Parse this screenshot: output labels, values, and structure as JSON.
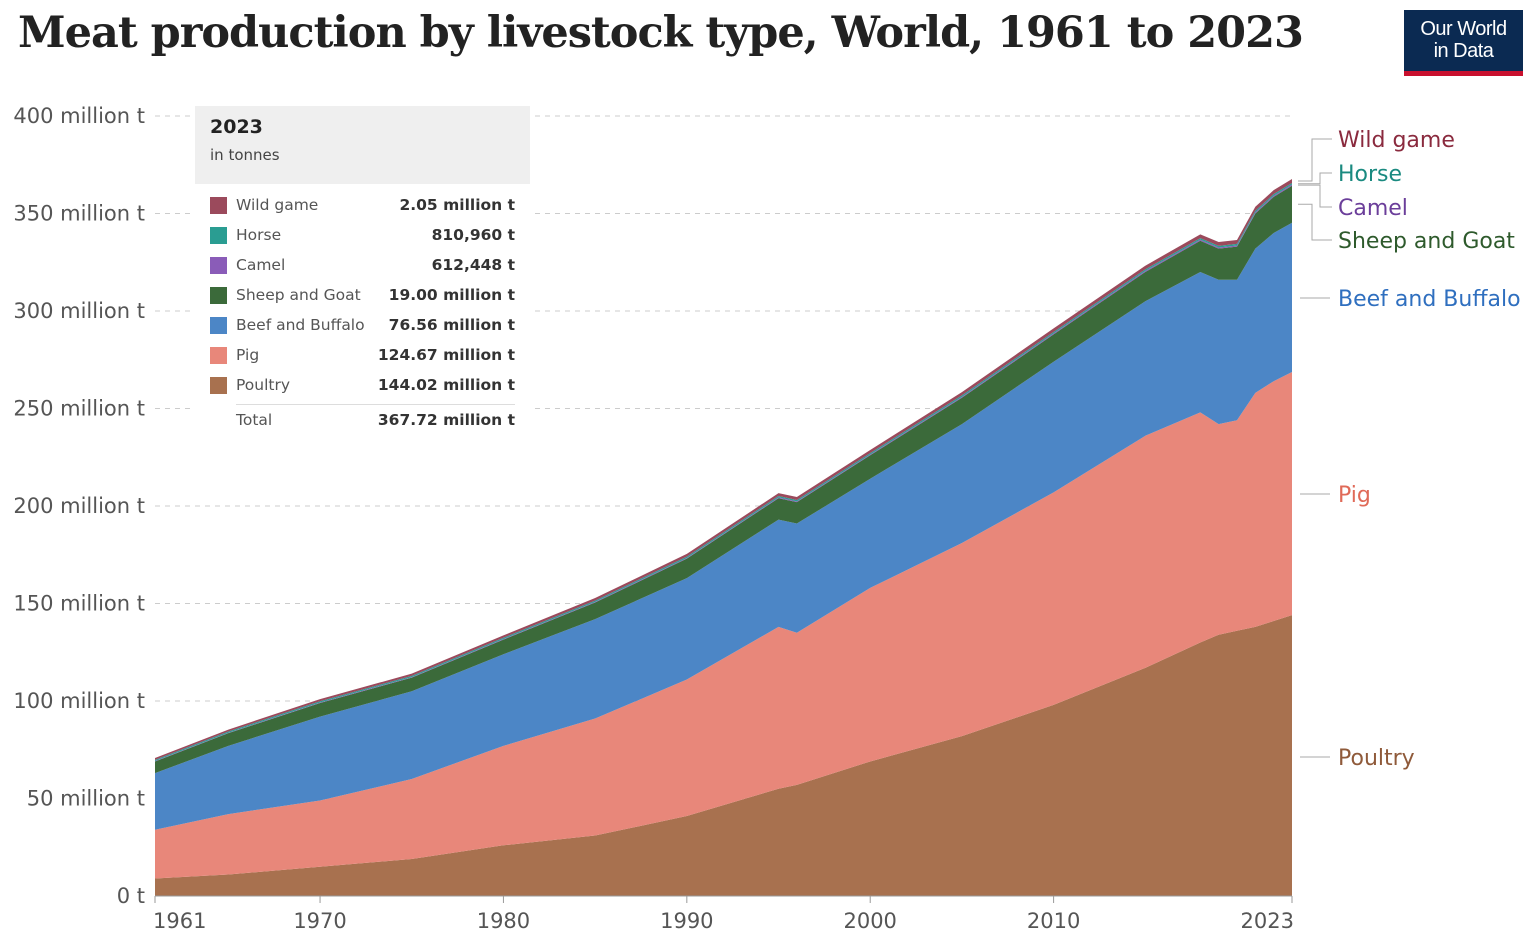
{
  "header": {
    "title": "Meat production by livestock type, World, 1961 to 2023",
    "logo_line1": "Our World",
    "logo_line2": "in Data"
  },
  "tooltip": {
    "year": "2023",
    "unit": "in tonnes",
    "rows": [
      {
        "name": "Wild game",
        "value": "2.05 million t"
      },
      {
        "name": "Horse",
        "value": "810,960 t"
      },
      {
        "name": "Camel",
        "value": "612,448 t"
      },
      {
        "name": "Sheep and Goat",
        "value": "19.00 million t"
      },
      {
        "name": "Beef and Buffalo",
        "value": "76.56 million t"
      },
      {
        "name": "Pig",
        "value": "124.67 million t"
      },
      {
        "name": "Poultry",
        "value": "144.02 million t"
      }
    ],
    "total_label": "Total",
    "total_value": "367.72 million t"
  },
  "chart_data": {
    "type": "area",
    "stacked": true,
    "title": "Meat production by livestock type, World, 1961 to 2023",
    "ylim": [
      0,
      400
    ],
    "xlim": [
      1961,
      2023
    ],
    "grid": true,
    "legend": "right",
    "y_ticks": [
      0,
      50,
      100,
      150,
      200,
      250,
      300,
      350,
      400
    ],
    "y_tick_labels": [
      "0 t",
      "50 million t",
      "100 million t",
      "150 million t",
      "200 million t",
      "250 million t",
      "300 million t",
      "350 million t",
      "400 million t"
    ],
    "x_ticks": [
      1961,
      1970,
      1980,
      1990,
      2000,
      2010,
      2023
    ],
    "x_tick_labels": [
      "1961",
      "1970",
      "1980",
      "1990",
      "2000",
      "2010",
      "2023"
    ],
    "x": [
      1961,
      1965,
      1970,
      1975,
      1980,
      1985,
      1990,
      1995,
      1996,
      2000,
      2005,
      2010,
      2015,
      2018,
      2019,
      2020,
      2021,
      2022,
      2023
    ],
    "series": [
      {
        "name": "Poultry",
        "color": "#a8714f",
        "values": [
          9,
          11,
          15,
          19,
          26,
          31,
          41,
          55,
          57,
          69,
          82,
          98,
          117,
          130,
          134,
          136,
          138,
          141,
          144.02
        ]
      },
      {
        "name": "Pig",
        "color": "#e8877a",
        "values": [
          25,
          31,
          34,
          41,
          51,
          60,
          70,
          83,
          78,
          89,
          99,
          109,
          119,
          118,
          108,
          108,
          120,
          123,
          124.67
        ]
      },
      {
        "name": "Beef and Buffalo",
        "color": "#4c86c6",
        "values": [
          29,
          35,
          43,
          45,
          47,
          51,
          52,
          55,
          56,
          56,
          61,
          67,
          69,
          72,
          74,
          72,
          74,
          76,
          76.56
        ]
      },
      {
        "name": "Sheep and Goat",
        "color": "#3b6a3a",
        "values": [
          6,
          6.5,
          7,
          7,
          7.5,
          8.5,
          10,
          11,
          11,
          12,
          13.5,
          14,
          15,
          16,
          16,
          17,
          18,
          18.5,
          19.0
        ]
      },
      {
        "name": "Camel",
        "color": "#8a5cb8",
        "values": [
          0.2,
          0.22,
          0.25,
          0.27,
          0.3,
          0.33,
          0.36,
          0.4,
          0.4,
          0.42,
          0.46,
          0.5,
          0.55,
          0.58,
          0.59,
          0.6,
          0.6,
          0.61,
          0.612
        ]
      },
      {
        "name": "Horse",
        "color": "#2a9d92",
        "values": [
          0.6,
          0.62,
          0.63,
          0.64,
          0.65,
          0.66,
          0.68,
          0.7,
          0.7,
          0.72,
          0.74,
          0.76,
          0.78,
          0.79,
          0.8,
          0.8,
          0.81,
          0.81,
          0.811
        ]
      },
      {
        "name": "Wild game",
        "color": "#9b4a5c",
        "values": [
          1.0,
          1.0,
          1.1,
          1.1,
          1.2,
          1.3,
          1.4,
          1.5,
          1.5,
          1.6,
          1.7,
          1.8,
          1.9,
          1.95,
          2.0,
          2.0,
          2.02,
          2.04,
          2.05
        ]
      }
    ],
    "label_colors": {
      "Wild game": "#8a2a3e",
      "Horse": "#1a8a80",
      "Camel": "#6b3e9a",
      "Sheep and Goat": "#2e5a2c",
      "Beef and Buffalo": "#2f6fbf",
      "Pig": "#e06a58",
      "Poultry": "#8f5a3a"
    }
  }
}
